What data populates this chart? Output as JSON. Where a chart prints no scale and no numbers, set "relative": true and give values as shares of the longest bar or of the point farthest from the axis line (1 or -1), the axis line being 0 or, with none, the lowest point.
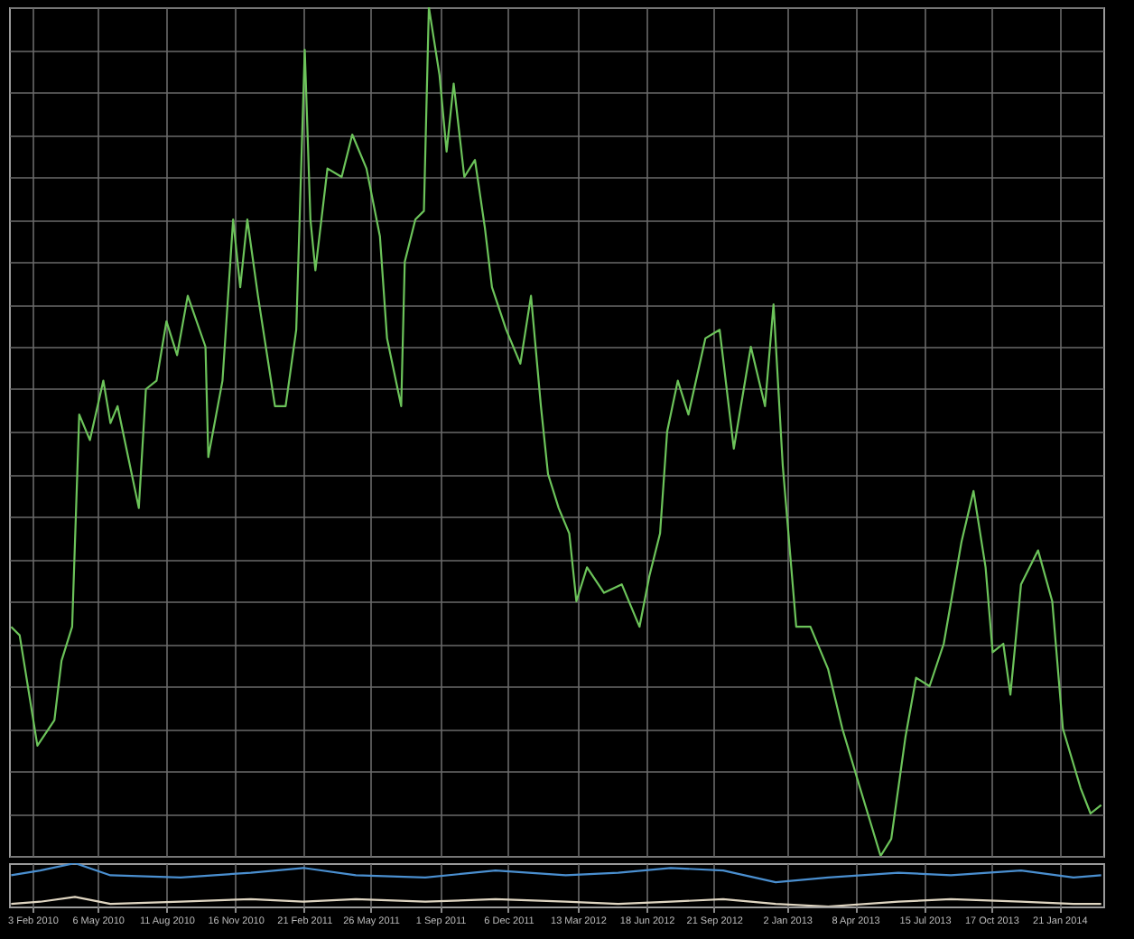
{
  "chart_data": [
    {
      "type": "line",
      "relative": true,
      "grid": true,
      "tick_labels": false,
      "x": [
        "2010-01-04",
        "2010-01-16",
        "2010-02-10",
        "2010-03-06",
        "2010-03-16",
        "2010-03-31",
        "2010-04-10",
        "2010-04-25",
        "2010-05-14",
        "2010-05-24",
        "2010-06-03",
        "2010-06-18",
        "2010-07-03",
        "2010-07-13",
        "2010-07-28",
        "2010-08-11",
        "2010-08-26",
        "2010-09-10",
        "2010-10-05",
        "2010-10-09",
        "2010-10-29",
        "2010-11-13",
        "2010-11-23",
        "2010-12-03",
        "2010-12-18",
        "2011-01-11",
        "2011-01-26",
        "2011-02-10",
        "2011-02-22",
        "2011-03-02",
        "2011-03-09",
        "2011-03-26",
        "2011-04-15",
        "2011-04-30",
        "2011-05-20",
        "2011-06-08",
        "2011-06-18",
        "2011-07-08",
        "2011-07-13",
        "2011-07-28",
        "2011-08-09",
        "2011-08-16",
        "2011-08-31",
        "2011-09-10",
        "2011-09-20",
        "2011-10-05",
        "2011-10-20",
        "2011-11-03",
        "2011-11-13",
        "2011-12-03",
        "2011-12-23",
        "2012-01-07",
        "2012-01-21",
        "2012-01-31",
        "2012-02-15",
        "2012-03-01",
        "2012-03-11",
        "2012-03-26",
        "2012-04-19",
        "2012-05-14",
        "2012-06-08",
        "2012-06-22",
        "2012-07-07",
        "2012-07-17",
        "2012-08-01",
        "2012-08-16",
        "2012-09-09",
        "2012-09-29",
        "2012-10-19",
        "2012-11-12",
        "2012-12-02",
        "2012-12-14",
        "2012-12-27",
        "2013-01-15",
        "2013-02-04",
        "2013-03-01",
        "2013-03-21",
        "2013-04-15",
        "2013-05-14",
        "2013-05-29",
        "2013-06-18",
        "2013-07-03",
        "2013-07-22",
        "2013-08-11",
        "2013-09-05",
        "2013-09-22",
        "2013-10-09",
        "2013-10-19",
        "2013-11-03",
        "2013-11-13",
        "2013-11-28",
        "2013-12-22",
        "2014-01-11",
        "2014-01-26",
        "2014-02-20",
        "2014-03-06",
        "2014-03-21"
      ],
      "series": [
        {
          "color": "#6cc35a",
          "values": [
            0.27,
            0.26,
            0.13,
            0.16,
            0.23,
            0.27,
            0.52,
            0.49,
            0.56,
            0.51,
            0.53,
            0.47,
            0.41,
            0.55,
            0.56,
            0.63,
            0.59,
            0.66,
            0.6,
            0.47,
            0.56,
            0.75,
            0.67,
            0.75,
            0.66,
            0.53,
            0.53,
            0.62,
            0.95,
            0.75,
            0.69,
            0.81,
            0.8,
            0.85,
            0.81,
            0.73,
            0.61,
            0.53,
            0.7,
            0.75,
            0.76,
            1,
            0.92,
            0.83,
            0.91,
            0.8,
            0.82,
            0.74,
            0.67,
            0.62,
            0.58,
            0.66,
            0.53,
            0.45,
            0.41,
            0.38,
            0.3,
            0.34,
            0.31,
            0.32,
            0.27,
            0.33,
            0.38,
            0.5,
            0.56,
            0.52,
            0.61,
            0.62,
            0.48,
            0.6,
            0.53,
            0.65,
            0.46,
            0.27,
            0.27,
            0.22,
            0.15,
            0.08,
            0,
            0.02,
            0.14,
            0.21,
            0.2,
            0.25,
            0.37,
            0.43,
            0.34,
            0.24,
            0.25,
            0.19,
            0.32,
            0.36,
            0.3,
            0.15,
            0.08,
            0.05,
            0.06
          ]
        }
      ],
      "xlim": [
        "2010-01-01",
        "2014-03-24"
      ],
      "xticks": [
        {
          "value": "2010-02-03",
          "label": null
        },
        {
          "value": "2010-05-06",
          "label": null
        },
        {
          "value": "2010-08-11",
          "label": null
        },
        {
          "value": "2010-11-16",
          "label": null
        },
        {
          "value": "2011-02-21",
          "label": null
        },
        {
          "value": "2011-05-26",
          "label": null
        },
        {
          "value": "2011-09-01",
          "label": null
        },
        {
          "value": "2011-12-06",
          "label": null
        },
        {
          "value": "2012-03-13",
          "label": null
        },
        {
          "value": "2012-06-18",
          "label": null
        },
        {
          "value": "2012-09-21",
          "label": null
        },
        {
          "value": "2013-01-02",
          "label": null
        },
        {
          "value": "2013-04-08",
          "label": null
        },
        {
          "value": "2013-07-15",
          "label": null
        },
        {
          "value": "2013-10-17",
          "label": null
        },
        {
          "value": "2014-01-21",
          "label": null
        }
      ]
    },
    {
      "type": "line",
      "relative": true,
      "grid": "x",
      "x": [
        "2010-01-04",
        "2010-02-14",
        "2010-04-04",
        "2010-05-24",
        "2010-08-31",
        "2010-12-08",
        "2011-02-20",
        "2011-05-05",
        "2011-08-11",
        "2011-11-18",
        "2012-02-25",
        "2012-05-09",
        "2012-07-22",
        "2012-10-04",
        "2012-12-17",
        "2013-03-01",
        "2013-06-08",
        "2013-08-21",
        "2013-11-28",
        "2014-02-10",
        "2014-03-21"
      ],
      "series": [
        {
          "color": "#4a8fd0",
          "values": [
            0.72,
            0.83,
            1,
            0.72,
            0.67,
            0.78,
            0.89,
            0.72,
            0.67,
            0.83,
            0.72,
            0.78,
            0.89,
            0.83,
            0.56,
            0.67,
            0.78,
            0.72,
            0.83,
            0.67,
            0.72
          ]
        },
        {
          "color": "#e0d6c2",
          "values": [
            0.06,
            0.11,
            0.22,
            0.06,
            0.11,
            0.17,
            0.11,
            0.17,
            0.11,
            0.17,
            0.11,
            0.06,
            0.11,
            0.17,
            0.06,
            0,
            0.11,
            0.17,
            0.11,
            0.06,
            0.06
          ]
        }
      ],
      "xlim": [
        "2010-01-01",
        "2014-03-24"
      ],
      "xticks": [
        {
          "value": "2010-02-03",
          "label": "3 Feb 2010"
        },
        {
          "value": "2010-05-06",
          "label": "6 May 2010"
        },
        {
          "value": "2010-08-11",
          "label": "11 Aug 2010"
        },
        {
          "value": "2010-11-16",
          "label": "16 Nov 2010"
        },
        {
          "value": "2011-02-21",
          "label": "21 Feb 2011"
        },
        {
          "value": "2011-05-26",
          "label": "26 May 2011"
        },
        {
          "value": "2011-09-01",
          "label": "1 Sep 2011"
        },
        {
          "value": "2011-12-06",
          "label": "6 Dec 2011"
        },
        {
          "value": "2012-03-13",
          "label": "13 Mar 2012"
        },
        {
          "value": "2012-06-18",
          "label": "18 Jun 2012"
        },
        {
          "value": "2012-09-21",
          "label": "21 Sep 2012"
        },
        {
          "value": "2013-01-02",
          "label": "2 Jan 2013"
        },
        {
          "value": "2013-04-08",
          "label": "8 Apr 2013"
        },
        {
          "value": "2013-07-15",
          "label": "15 Jul 2013"
        },
        {
          "value": "2013-10-17",
          "label": "17 Oct 2013"
        },
        {
          "value": "2014-01-21",
          "label": "21 Jan 2014"
        }
      ]
    }
  ]
}
